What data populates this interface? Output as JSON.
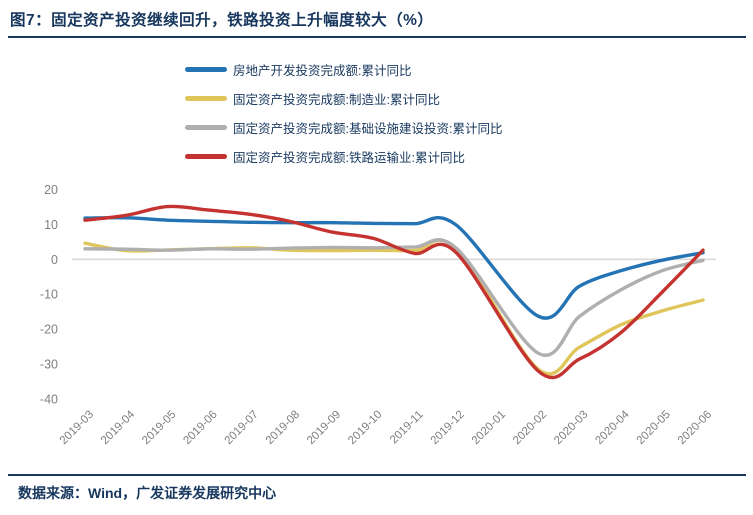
{
  "header": {
    "title": "图7：固定资产投资继续回升，铁路投资上升幅度较大（%）"
  },
  "footer": {
    "source": "数据来源：Wind，广发证券发展研究中心"
  },
  "colors": {
    "accent_navy": "#17375E",
    "axis_text": "#7F7F7F",
    "zero_gridline": "#D9D9D9",
    "series_blue": "#2473B4",
    "series_yellow": "#DFC55A",
    "series_gray": "#AFAFAF",
    "series_red": "#C53330"
  },
  "chart_data": {
    "type": "line",
    "smoothed": true,
    "title": "图7：固定资产投资继续回升，铁路投资上升幅度较大（%）",
    "xlabel": "",
    "ylabel": "",
    "ylim": [
      -40,
      20
    ],
    "yticks": [
      20,
      10,
      0,
      -10,
      -20,
      -30,
      -40
    ],
    "grid": "zero-line-only",
    "legend_position": "top-left-of-plot",
    "categories": [
      "2019-03",
      "2019-04",
      "2019-05",
      "2019-06",
      "2019-07",
      "2019-08",
      "2019-09",
      "2019-10",
      "2019-11",
      "2019-12",
      "2020-01",
      "2020-02",
      "2020-03",
      "2020-04",
      "2020-05",
      "2020-06"
    ],
    "series": [
      {
        "name": "房地产开发投资完成额:累计同比",
        "color": "#2473B4",
        "values": [
          11.8,
          11.9,
          11.2,
          10.9,
          10.6,
          10.5,
          10.5,
          10.3,
          10.2,
          9.9,
          null,
          -16.3,
          -7.7,
          -3.3,
          -0.3,
          1.9
        ]
      },
      {
        "name": "固定资产投资完成额:制造业:累计同比",
        "color": "#DFC55A",
        "values": [
          4.6,
          2.5,
          2.7,
          3.0,
          3.3,
          2.6,
          2.5,
          2.6,
          2.5,
          3.1,
          null,
          -31.5,
          -25.2,
          -18.8,
          -14.8,
          -11.7
        ]
      },
      {
        "name": "固定资产投资完成额:基础设施建设投资:累计同比",
        "color": "#AFAFAF",
        "values": [
          3.0,
          2.9,
          2.6,
          3.0,
          2.9,
          3.2,
          3.4,
          3.3,
          3.5,
          3.3,
          null,
          -26.9,
          -16.4,
          -8.8,
          -3.3,
          -0.3
        ]
      },
      {
        "name": "固定资产投资完成额:铁路运输业:累计同比",
        "color": "#C53330",
        "values": [
          11.2,
          12.6,
          15.1,
          14.1,
          12.9,
          10.8,
          7.8,
          6.0,
          1.7,
          2.0,
          null,
          -32.0,
          -28.6,
          -21.1,
          -9.5,
          2.6
        ]
      }
    ]
  }
}
